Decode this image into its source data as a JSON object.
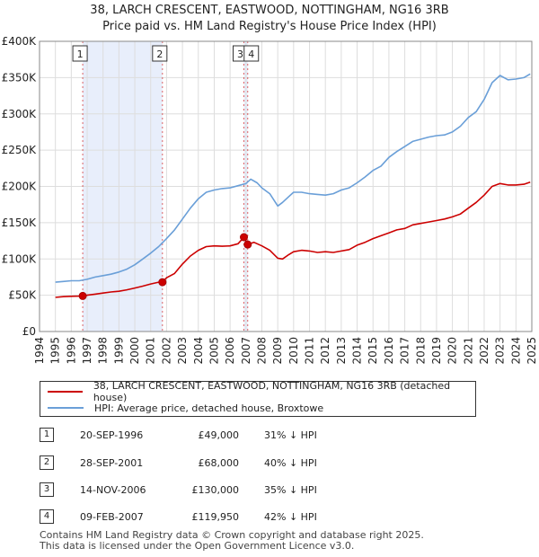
{
  "title": "38, LARCH CRESCENT, EASTWOOD, NOTTINGHAM, NG16 3RB",
  "subtitle": "Price paid vs. HM Land Registry's House Price Index (HPI)",
  "legend": {
    "property_label": "38, LARCH CRESCENT, EASTWOOD, NOTTINGHAM, NG16 3RB (detached house)",
    "hpi_label": "HPI: Average price, detached house, Broxtowe"
  },
  "colors": {
    "property": "#cc0000",
    "hpi": "#6a9fd8",
    "shade": "#e8eefb",
    "grid": "#dddddd"
  },
  "sales": [
    {
      "num": "1",
      "date": "20-SEP-1996",
      "price": "£49,000",
      "hpi": "31% ↓ HPI"
    },
    {
      "num": "2",
      "date": "28-SEP-2001",
      "price": "£68,000",
      "hpi": "40% ↓ HPI"
    },
    {
      "num": "3",
      "date": "14-NOV-2006",
      "price": "£130,000",
      "hpi": "35% ↓ HPI"
    },
    {
      "num": "4",
      "date": "09-FEB-2007",
      "price": "£119,950",
      "hpi": "42% ↓ HPI"
    }
  ],
  "footer": {
    "line1": "Contains HM Land Registry data © Crown copyright and database right 2025.",
    "line2": "This data is licensed under the Open Government Licence v3.0."
  },
  "chart_data": {
    "type": "line",
    "xlim": [
      1994,
      2025
    ],
    "ylim": [
      0,
      400000
    ],
    "grid": true,
    "y_ticks": [
      0,
      50000,
      100000,
      150000,
      200000,
      250000,
      300000,
      350000,
      400000
    ],
    "y_tick_labels": [
      "£0",
      "£50K",
      "£100K",
      "£150K",
      "£200K",
      "£250K",
      "£300K",
      "£350K",
      "£400K"
    ],
    "x_ticks": [
      1994,
      1995,
      1996,
      1997,
      1998,
      1999,
      2000,
      2001,
      2002,
      2003,
      2004,
      2005,
      2006,
      2007,
      2008,
      2009,
      2010,
      2011,
      2012,
      2013,
      2014,
      2015,
      2016,
      2017,
      2018,
      2019,
      2020,
      2021,
      2022,
      2023,
      2024,
      2025
    ],
    "x_tick_labels": [
      "1994",
      "1995",
      "1996",
      "1997",
      "1998",
      "1999",
      "2000",
      "2001",
      "2002",
      "2003",
      "2004",
      "2005",
      "2006",
      "2007",
      "2008",
      "2009",
      "2010",
      "2011",
      "2012",
      "2013",
      "2014",
      "2015",
      "2016",
      "2017",
      "2018",
      "2019",
      "2020",
      "2021",
      "2022",
      "2023",
      "2024",
      "2025"
    ],
    "shaded_ranges": [
      [
        1996.72,
        2001.74
      ],
      [
        2006.87,
        2007.11
      ]
    ],
    "sale_markers": [
      {
        "label": "1",
        "x": 1996.72,
        "y": 49000
      },
      {
        "label": "2",
        "x": 2001.74,
        "y": 68000
      },
      {
        "label": "3",
        "x": 2006.87,
        "y": 130000
      },
      {
        "label": "4",
        "x": 2007.11,
        "y": 119950
      }
    ],
    "series": [
      {
        "name": "38, LARCH CRESCENT, EASTWOOD, NOTTINGHAM, NG16 3RB (detached house)",
        "x": [
          1995.0,
          1995.5,
          1996.0,
          1996.5,
          1996.72,
          1997.0,
          1997.5,
          1998.0,
          1998.5,
          1999.0,
          1999.5,
          2000.0,
          2000.5,
          2001.0,
          2001.5,
          2001.74,
          2002.0,
          2002.5,
          2003.0,
          2003.5,
          2004.0,
          2004.5,
          2005.0,
          2005.5,
          2006.0,
          2006.5,
          2006.87,
          2007.11,
          2007.5,
          2008.0,
          2008.5,
          2009.0,
          2009.3,
          2009.7,
          2010.0,
          2010.5,
          2011.0,
          2011.5,
          2012.0,
          2012.5,
          2013.0,
          2013.5,
          2014.0,
          2014.5,
          2015.0,
          2015.5,
          2016.0,
          2016.5,
          2017.0,
          2017.5,
          2018.0,
          2018.5,
          2019.0,
          2019.5,
          2020.0,
          2020.5,
          2021.0,
          2021.5,
          2022.0,
          2022.5,
          2023.0,
          2023.5,
          2024.0,
          2024.5,
          2024.9
        ],
        "y": [
          47000,
          48000,
          48500,
          48800,
          49000,
          50000,
          51500,
          53000,
          54500,
          55500,
          57500,
          60000,
          62500,
          65500,
          68000,
          68000,
          74000,
          80000,
          93000,
          104000,
          112000,
          117000,
          118000,
          117500,
          118000,
          121000,
          130000,
          119950,
          123000,
          118000,
          112000,
          101000,
          100000,
          106000,
          110000,
          112000,
          111000,
          109000,
          110000,
          109000,
          111000,
          113000,
          119000,
          123000,
          128000,
          132000,
          136000,
          140000,
          142000,
          147000,
          149000,
          151000,
          153000,
          155000,
          158000,
          162000,
          170000,
          178000,
          188000,
          200000,
          204000,
          202000,
          202000,
          203000,
          206000
        ]
      },
      {
        "name": "HPI: Average price, detached house, Broxtowe",
        "x": [
          1995.0,
          1995.5,
          1996.0,
          1996.5,
          1997.0,
          1997.5,
          1998.0,
          1998.5,
          1999.0,
          1999.5,
          2000.0,
          2000.5,
          2001.0,
          2001.5,
          2002.0,
          2002.5,
          2003.0,
          2003.5,
          2004.0,
          2004.5,
          2005.0,
          2005.5,
          2006.0,
          2006.5,
          2007.0,
          2007.3,
          2007.7,
          2008.0,
          2008.5,
          2009.0,
          2009.3,
          2009.7,
          2010.0,
          2010.5,
          2011.0,
          2011.5,
          2012.0,
          2012.5,
          2013.0,
          2013.5,
          2014.0,
          2014.5,
          2015.0,
          2015.5,
          2016.0,
          2016.5,
          2017.0,
          2017.5,
          2018.0,
          2018.5,
          2019.0,
          2019.5,
          2020.0,
          2020.5,
          2021.0,
          2021.5,
          2022.0,
          2022.5,
          2023.0,
          2023.5,
          2024.0,
          2024.5,
          2024.9
        ],
        "y": [
          68000,
          69000,
          70000,
          70000,
          72000,
          75000,
          77000,
          79000,
          82000,
          86000,
          92000,
          100000,
          108000,
          117000,
          128000,
          140000,
          155000,
          170000,
          183000,
          192000,
          195000,
          197000,
          198000,
          201000,
          204000,
          210000,
          205000,
          198000,
          190000,
          173000,
          178000,
          186000,
          192000,
          192000,
          190000,
          189000,
          188000,
          190000,
          195000,
          198000,
          205000,
          213000,
          222000,
          228000,
          240000,
          248000,
          255000,
          262000,
          265000,
          268000,
          270000,
          271000,
          275000,
          283000,
          295000,
          303000,
          320000,
          343000,
          353000,
          347000,
          348000,
          350000,
          355000
        ]
      }
    ]
  }
}
